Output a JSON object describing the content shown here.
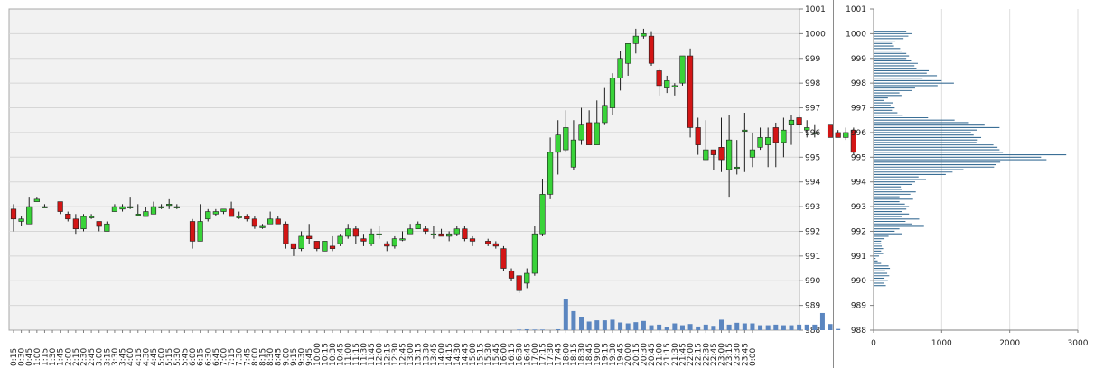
{
  "chart_data": [
    {
      "type": "candlestick",
      "y_axis": {
        "range": [
          988,
          1001
        ],
        "ticks": [
          "988",
          "989",
          "990",
          "991",
          "992",
          "993",
          "994",
          "995",
          "996",
          "997",
          "998",
          "999",
          "1000",
          "1001"
        ],
        "position": "right"
      },
      "x_tick_labels": [
        "0:15",
        "0:30",
        "0:45",
        "1:00",
        "1:15",
        "1:30",
        "1:45",
        "2:00",
        "2:15",
        "2:30",
        "2:45",
        "3:00",
        "3:15",
        "3:30",
        "3:45",
        "4:00",
        "4:15",
        "4:30",
        "4:45",
        "5:00",
        "5:15",
        "5:30",
        "5:45",
        "6:00",
        "6:15",
        "6:30",
        "6:45",
        "7:00",
        "7:15",
        "7:30",
        "7:45",
        "8:00",
        "8:15",
        "8:30",
        "8:45",
        "9:00",
        "9:15",
        "9:30",
        "9:45",
        "10:00",
        "10:15",
        "10:30",
        "10:45",
        "11:00",
        "11:15",
        "11:30",
        "11:45",
        "12:00",
        "12:15",
        "12:30",
        "12:45",
        "13:00",
        "13:15",
        "13:30",
        "13:45",
        "14:00",
        "14:15",
        "14:30",
        "14:45",
        "15:00",
        "15:15",
        "15:30",
        "15:45",
        "16:00",
        "16:15",
        "16:30",
        "16:45",
        "17:00",
        "17:15",
        "17:30",
        "17:45",
        "18:00",
        "18:15",
        "18:30",
        "18:45",
        "19:00",
        "19:15",
        "19:30",
        "19:45",
        "20:00",
        "20:15",
        "20:30",
        "20:45",
        "21:00",
        "21:15",
        "21:30",
        "21:45",
        "22:00",
        "22:15",
        "22:30",
        "22:45",
        "23:00",
        "23:15",
        "23:30",
        "23:45",
        "0:00"
      ],
      "candles": [
        [
          992.9,
          993.1,
          992.0,
          992.5
        ],
        [
          992.4,
          992.6,
          992.2,
          992.5
        ],
        [
          992.3,
          993.4,
          992.3,
          993.0
        ],
        [
          993.2,
          993.4,
          993.2,
          993.3
        ],
        [
          993.0,
          993.1,
          993.0,
          993.0
        ],
        null,
        [
          993.2,
          993.2,
          992.7,
          992.8
        ],
        [
          992.7,
          992.8,
          992.4,
          992.5
        ],
        [
          992.5,
          992.7,
          991.9,
          992.1
        ],
        [
          992.1,
          992.7,
          992.0,
          992.6
        ],
        [
          992.6,
          992.7,
          992.5,
          992.6
        ],
        [
          992.4,
          992.4,
          992.0,
          992.2
        ],
        [
          992.0,
          992.4,
          992.0,
          992.3
        ],
        [
          992.8,
          993.1,
          992.8,
          993.0
        ],
        [
          992.9,
          993.1,
          992.8,
          993.0
        ],
        [
          993.0,
          993.4,
          992.9,
          993.0
        ],
        [
          992.7,
          993.1,
          992.6,
          992.7
        ],
        [
          992.6,
          993.0,
          992.6,
          992.8
        ],
        [
          992.7,
          993.2,
          992.7,
          993.0
        ],
        [
          993.0,
          993.1,
          992.9,
          993.0
        ],
        [
          993.1,
          993.3,
          992.9,
          993.1
        ],
        [
          993.0,
          993.1,
          992.9,
          993.0
        ],
        null,
        [
          992.4,
          992.5,
          991.3,
          991.6
        ],
        [
          991.6,
          993.1,
          991.6,
          992.4
        ],
        [
          992.5,
          992.9,
          992.4,
          992.8
        ],
        [
          992.7,
          992.9,
          992.6,
          992.8
        ],
        [
          992.8,
          992.9,
          992.7,
          992.9
        ],
        [
          992.9,
          993.2,
          992.6,
          992.6
        ],
        [
          992.6,
          992.8,
          992.5,
          992.6
        ],
        [
          992.6,
          992.7,
          992.4,
          992.5
        ],
        [
          992.5,
          992.6,
          992.1,
          992.2
        ],
        [
          992.2,
          992.3,
          992.1,
          992.2
        ],
        [
          992.3,
          992.8,
          992.3,
          992.5
        ],
        [
          992.5,
          992.6,
          992.3,
          992.3
        ],
        [
          992.3,
          992.4,
          991.3,
          991.5
        ],
        [
          991.5,
          991.5,
          991.0,
          991.3
        ],
        [
          991.3,
          992.0,
          991.2,
          991.8
        ],
        [
          991.8,
          992.3,
          991.5,
          991.7
        ],
        [
          991.6,
          991.6,
          991.2,
          991.3
        ],
        [
          991.2,
          991.6,
          991.2,
          991.6
        ],
        [
          991.4,
          991.8,
          991.2,
          991.3
        ],
        [
          991.5,
          991.9,
          991.4,
          991.8
        ],
        [
          991.8,
          992.3,
          991.7,
          992.1
        ],
        [
          992.1,
          992.2,
          991.5,
          991.8
        ],
        [
          991.7,
          991.9,
          991.4,
          991.6
        ],
        [
          991.5,
          992.1,
          991.4,
          991.9
        ],
        [
          991.9,
          992.2,
          991.7,
          991.9
        ],
        [
          991.5,
          991.6,
          991.2,
          991.4
        ],
        [
          991.4,
          991.8,
          991.3,
          991.7
        ],
        [
          991.7,
          992.0,
          991.6,
          991.7
        ],
        [
          991.9,
          992.3,
          991.9,
          992.1
        ],
        [
          992.1,
          992.4,
          992.1,
          992.3
        ],
        [
          992.1,
          992.2,
          991.9,
          992.0
        ],
        [
          991.9,
          992.2,
          991.7,
          991.9
        ],
        [
          991.9,
          992.1,
          991.8,
          991.8
        ],
        [
          991.8,
          992.0,
          991.6,
          991.9
        ],
        [
          991.9,
          992.2,
          991.8,
          992.1
        ],
        [
          992.1,
          992.2,
          991.6,
          991.7
        ],
        [
          991.7,
          991.8,
          991.4,
          991.6
        ],
        null,
        [
          991.6,
          991.7,
          991.4,
          991.5
        ],
        [
          991.5,
          991.6,
          991.3,
          991.4
        ],
        [
          991.3,
          991.4,
          990.4,
          990.5
        ],
        [
          990.4,
          990.5,
          990.0,
          990.1
        ],
        [
          990.2,
          990.2,
          989.5,
          989.6
        ],
        [
          989.9,
          990.5,
          989.7,
          990.3
        ],
        [
          990.3,
          992.2,
          990.2,
          991.9
        ],
        [
          991.9,
          994.1,
          991.8,
          993.5
        ],
        [
          993.5,
          995.8,
          993.3,
          995.2
        ],
        [
          995.2,
          996.5,
          994.3,
          995.9
        ],
        [
          995.3,
          996.9,
          995.2,
          996.2
        ],
        [
          994.6,
          996.5,
          994.5,
          995.7
        ],
        [
          995.7,
          997.0,
          995.5,
          996.3
        ],
        [
          996.4,
          996.9,
          995.8,
          995.5
        ],
        [
          995.5,
          997.3,
          995.5,
          996.4
        ],
        [
          996.4,
          997.8,
          996.3,
          997.1
        ],
        [
          997.0,
          998.4,
          996.7,
          998.2
        ],
        [
          998.2,
          999.3,
          997.7,
          999.0
        ],
        [
          998.8,
          999.6,
          998.3,
          999.6
        ],
        [
          999.6,
          1000.2,
          999.2,
          999.9
        ],
        [
          999.9,
          1000.2,
          999.8,
          1000.0
        ],
        [
          999.9,
          1000.1,
          998.7,
          998.8
        ],
        [
          998.5,
          998.6,
          997.5,
          997.9
        ],
        [
          997.8,
          998.3,
          997.6,
          998.1
        ],
        [
          997.9,
          998.0,
          997.5,
          997.9
        ],
        [
          998.0,
          999.1,
          997.9,
          999.1
        ],
        [
          999.1,
          999.4,
          995.8,
          996.2
        ],
        [
          996.2,
          996.6,
          995.1,
          995.5
        ],
        [
          994.9,
          996.5,
          994.9,
          995.3
        ],
        [
          995.3,
          995.3,
          994.5,
          995.1
        ],
        [
          995.4,
          996.6,
          994.4,
          994.9
        ],
        [
          994.5,
          996.7,
          993.4,
          995.7
        ],
        [
          994.6,
          995.7,
          994.3,
          994.6
        ],
        [
          996.1,
          996.8,
          994.4,
          996.1
        ],
        [
          995.0,
          996.0,
          994.6,
          995.3
        ],
        [
          995.4,
          996.2,
          995.3,
          995.8
        ],
        [
          995.5,
          996.2,
          994.6,
          995.8
        ],
        [
          996.2,
          996.4,
          994.6,
          995.6
        ],
        [
          995.6,
          996.6,
          995.0,
          996.1
        ],
        [
          996.3,
          996.7,
          995.5,
          996.5
        ],
        [
          996.6,
          996.7,
          996.2,
          996.3
        ],
        [
          996.1,
          996.5,
          995.8,
          996.2
        ],
        [
          996.0,
          996.3,
          995.8,
          996.0
        ],
        null,
        [
          996.3,
          996.3,
          995.8,
          995.8
        ],
        [
          996.0,
          996.1,
          995.8,
          995.8
        ],
        [
          995.8,
          996.2,
          995.7,
          996.0
        ],
        [
          996.1,
          996.2,
          995.1,
          995.2
        ]
      ],
      "volume": [
        0,
        0,
        0,
        0,
        0,
        0,
        0,
        0,
        0,
        0,
        0,
        0,
        0,
        0,
        0,
        0,
        0,
        0,
        0,
        0,
        0,
        0,
        0,
        0,
        0,
        0,
        0,
        0,
        0,
        0,
        0,
        0,
        0,
        0,
        0,
        0,
        0,
        0,
        0,
        0,
        0,
        0,
        0,
        0,
        0,
        0,
        0,
        0,
        0,
        0,
        0,
        0,
        0,
        0,
        0,
        0,
        0,
        0,
        0,
        0,
        0,
        0,
        0,
        0,
        0,
        0.02,
        0.03,
        0.02,
        0.02,
        0,
        0.03,
        1.0,
        0.62,
        0.42,
        0.28,
        0.32,
        0.32,
        0.34,
        0.25,
        0.22,
        0.26,
        0.3,
        0.16,
        0.18,
        0.11,
        0.22,
        0.16,
        0.2,
        0.12,
        0.18,
        0.14,
        0.34,
        0.18,
        0.24,
        0.22,
        0.22,
        0.16,
        0.16,
        0.18,
        0.16,
        0.16,
        0.18,
        0.18,
        0.18,
        0.56,
        0.2,
        0.04,
        0,
        0,
        0,
        0,
        0
      ],
      "colors": {
        "up_candle": "#39d339",
        "down_candle": "#d31515",
        "volume": "#5b86c0",
        "plot_background": "#f2f2f2"
      },
      "grid": true
    },
    {
      "type": "bar",
      "orientation": "horizontal",
      "x_axis": {
        "range": [
          0,
          3000
        ],
        "ticks": [
          "0",
          "1000",
          "2000",
          "3000"
        ]
      },
      "y_axis": {
        "range": [
          988,
          1001
        ],
        "ticks": [
          "988",
          "989",
          "990",
          "991",
          "992",
          "993",
          "994",
          "995",
          "996",
          "997",
          "998",
          "999",
          "1000",
          "1001"
        ]
      },
      "profile": [
        [
          989.8,
          180
        ],
        [
          989.9,
          150
        ],
        [
          990.0,
          210
        ],
        [
          990.1,
          160
        ],
        [
          990.2,
          230
        ],
        [
          990.3,
          200
        ],
        [
          990.4,
          170
        ],
        [
          990.5,
          240
        ],
        [
          990.6,
          220
        ],
        [
          990.7,
          110
        ],
        [
          990.8,
          60
        ],
        [
          990.9,
          30
        ],
        [
          991.0,
          80
        ],
        [
          991.1,
          140
        ],
        [
          991.2,
          110
        ],
        [
          991.3,
          140
        ],
        [
          991.4,
          120
        ],
        [
          991.5,
          110
        ],
        [
          991.6,
          110
        ],
        [
          991.7,
          160
        ],
        [
          991.8,
          220
        ],
        [
          991.9,
          420
        ],
        [
          992.0,
          310
        ],
        [
          992.1,
          380
        ],
        [
          992.2,
          740
        ],
        [
          992.3,
          560
        ],
        [
          992.4,
          470
        ],
        [
          992.5,
          670
        ],
        [
          992.6,
          420
        ],
        [
          992.7,
          520
        ],
        [
          992.8,
          420
        ],
        [
          992.9,
          480
        ],
        [
          993.0,
          520
        ],
        [
          993.1,
          460
        ],
        [
          993.2,
          380
        ],
        [
          993.3,
          580
        ],
        [
          993.4,
          380
        ],
        [
          993.5,
          540
        ],
        [
          993.6,
          620
        ],
        [
          993.7,
          410
        ],
        [
          993.8,
          400
        ],
        [
          993.9,
          560
        ],
        [
          994.0,
          610
        ],
        [
          994.1,
          770
        ],
        [
          994.2,
          660
        ],
        [
          994.3,
          1060
        ],
        [
          994.4,
          1160
        ],
        [
          994.5,
          1320
        ],
        [
          994.6,
          1770
        ],
        [
          994.7,
          1800
        ],
        [
          994.8,
          1860
        ],
        [
          994.9,
          2540
        ],
        [
          995.0,
          2460
        ],
        [
          995.1,
          2830
        ],
        [
          995.2,
          1900
        ],
        [
          995.3,
          1850
        ],
        [
          995.4,
          1820
        ],
        [
          995.5,
          1760
        ],
        [
          995.6,
          1510
        ],
        [
          995.7,
          1530
        ],
        [
          995.8,
          1580
        ],
        [
          995.9,
          1470
        ],
        [
          996.0,
          1430
        ],
        [
          996.1,
          1520
        ],
        [
          996.2,
          1850
        ],
        [
          996.3,
          1630
        ],
        [
          996.4,
          1400
        ],
        [
          996.5,
          1190
        ],
        [
          996.6,
          800
        ],
        [
          996.7,
          430
        ],
        [
          996.8,
          350
        ],
        [
          996.9,
          270
        ],
        [
          997.0,
          310
        ],
        [
          997.1,
          250
        ],
        [
          997.2,
          290
        ],
        [
          997.3,
          150
        ],
        [
          997.4,
          210
        ],
        [
          997.5,
          410
        ],
        [
          997.6,
          380
        ],
        [
          997.7,
          560
        ],
        [
          997.8,
          610
        ],
        [
          997.9,
          940
        ],
        [
          998.0,
          1180
        ],
        [
          998.1,
          1000
        ],
        [
          998.2,
          720
        ],
        [
          998.3,
          930
        ],
        [
          998.4,
          780
        ],
        [
          998.5,
          810
        ],
        [
          998.6,
          630
        ],
        [
          998.7,
          600
        ],
        [
          998.8,
          650
        ],
        [
          998.9,
          550
        ],
        [
          999.0,
          480
        ],
        [
          999.1,
          520
        ],
        [
          999.2,
          480
        ],
        [
          999.3,
          420
        ],
        [
          999.4,
          390
        ],
        [
          999.5,
          300
        ],
        [
          999.6,
          270
        ],
        [
          999.7,
          320
        ],
        [
          999.8,
          440
        ],
        [
          999.9,
          510
        ],
        [
          1000.0,
          560
        ],
        [
          1000.1,
          480
        ]
      ],
      "colors": {
        "bar": "#3b6f96"
      },
      "grid": true
    }
  ]
}
